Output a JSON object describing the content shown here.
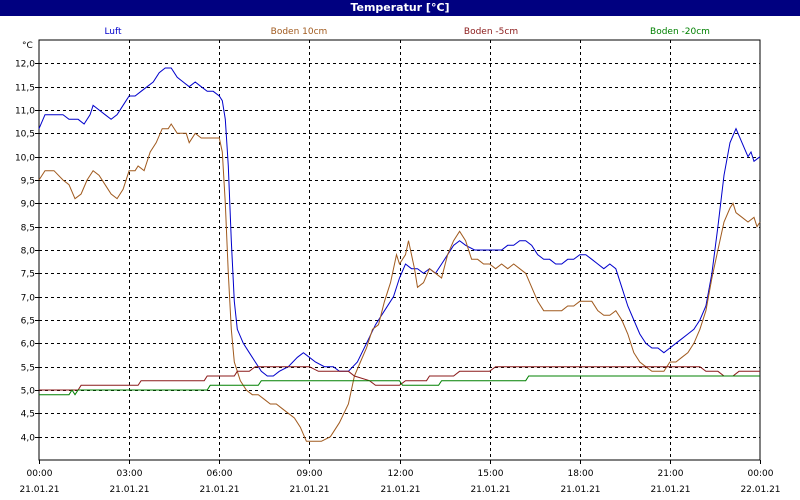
{
  "window": {
    "title": "Temperatur [°C]"
  },
  "colors": {
    "title_bar": "#000080",
    "grid": "#000000",
    "Luft": "#0000cc",
    "Boden 10cm": "#a05a1e",
    "Boden -5cm": "#8b1a1a",
    "Boden -20cm": "#008000"
  },
  "chart_data": {
    "type": "line",
    "title": "Temperatur [°C]",
    "ylabel": "°C",
    "ylim": [
      3.5,
      12.5
    ],
    "yticks": [
      "4,0",
      "4,5",
      "5,0",
      "5,5",
      "6,0",
      "6,5",
      "7,0",
      "7,5",
      "8,0",
      "8,5",
      "9,0",
      "9,5",
      "10,0",
      "10,5",
      "11,0",
      "11,5",
      "12,0"
    ],
    "xlim": [
      0,
      24
    ],
    "xticks": [
      {
        "x": 0,
        "time": "00:00",
        "date": "21.01.21"
      },
      {
        "x": 3,
        "time": "03:00",
        "date": "21.01.21"
      },
      {
        "x": 6,
        "time": "06:00",
        "date": "21.01.21"
      },
      {
        "x": 9,
        "time": "09:00",
        "date": "21.01.21"
      },
      {
        "x": 12,
        "time": "12:00",
        "date": "21.01.21"
      },
      {
        "x": 15,
        "time": "15:00",
        "date": "21.01.21"
      },
      {
        "x": 18,
        "time": "18:00",
        "date": "21.01.21"
      },
      {
        "x": 21,
        "time": "21:00",
        "date": "21.01.21"
      },
      {
        "x": 24,
        "time": "00:00",
        "date": "22.01.21"
      }
    ],
    "grid": true,
    "legend_position": "top",
    "series": [
      {
        "name": "Luft",
        "color": "#0000cc",
        "points": [
          [
            0.0,
            10.6
          ],
          [
            0.2,
            10.9
          ],
          [
            0.5,
            10.9
          ],
          [
            0.8,
            10.9
          ],
          [
            1.0,
            10.8
          ],
          [
            1.3,
            10.8
          ],
          [
            1.5,
            10.7
          ],
          [
            1.7,
            10.9
          ],
          [
            1.8,
            11.1
          ],
          [
            2.0,
            11.0
          ],
          [
            2.2,
            10.9
          ],
          [
            2.4,
            10.8
          ],
          [
            2.6,
            10.9
          ],
          [
            2.8,
            11.1
          ],
          [
            3.0,
            11.3
          ],
          [
            3.2,
            11.3
          ],
          [
            3.4,
            11.4
          ],
          [
            3.6,
            11.5
          ],
          [
            3.8,
            11.6
          ],
          [
            4.0,
            11.8
          ],
          [
            4.2,
            11.9
          ],
          [
            4.4,
            11.9
          ],
          [
            4.6,
            11.7
          ],
          [
            4.8,
            11.6
          ],
          [
            5.0,
            11.5
          ],
          [
            5.2,
            11.6
          ],
          [
            5.4,
            11.5
          ],
          [
            5.6,
            11.4
          ],
          [
            5.8,
            11.4
          ],
          [
            6.0,
            11.3
          ],
          [
            6.1,
            11.2
          ],
          [
            6.2,
            10.8
          ],
          [
            6.3,
            9.8
          ],
          [
            6.4,
            8.2
          ],
          [
            6.5,
            6.9
          ],
          [
            6.6,
            6.3
          ],
          [
            6.8,
            6.0
          ],
          [
            7.0,
            5.8
          ],
          [
            7.2,
            5.6
          ],
          [
            7.4,
            5.4
          ],
          [
            7.6,
            5.3
          ],
          [
            7.8,
            5.3
          ],
          [
            8.0,
            5.4
          ],
          [
            8.3,
            5.5
          ],
          [
            8.6,
            5.7
          ],
          [
            8.8,
            5.8
          ],
          [
            9.0,
            5.7
          ],
          [
            9.2,
            5.6
          ],
          [
            9.5,
            5.5
          ],
          [
            9.8,
            5.5
          ],
          [
            10.0,
            5.4
          ],
          [
            10.3,
            5.4
          ],
          [
            10.6,
            5.6
          ],
          [
            10.9,
            6.0
          ],
          [
            11.2,
            6.4
          ],
          [
            11.5,
            6.7
          ],
          [
            11.8,
            7.0
          ],
          [
            12.0,
            7.4
          ],
          [
            12.2,
            7.7
          ],
          [
            12.4,
            7.6
          ],
          [
            12.6,
            7.6
          ],
          [
            12.8,
            7.5
          ],
          [
            13.0,
            7.6
          ],
          [
            13.2,
            7.5
          ],
          [
            13.4,
            7.7
          ],
          [
            13.6,
            7.9
          ],
          [
            13.8,
            8.1
          ],
          [
            14.0,
            8.2
          ],
          [
            14.2,
            8.1
          ],
          [
            14.5,
            8.0
          ],
          [
            14.8,
            8.0
          ],
          [
            15.0,
            8.0
          ],
          [
            15.2,
            8.0
          ],
          [
            15.4,
            8.0
          ],
          [
            15.6,
            8.1
          ],
          [
            15.8,
            8.1
          ],
          [
            16.0,
            8.2
          ],
          [
            16.2,
            8.2
          ],
          [
            16.4,
            8.1
          ],
          [
            16.6,
            7.9
          ],
          [
            16.8,
            7.8
          ],
          [
            17.0,
            7.8
          ],
          [
            17.2,
            7.7
          ],
          [
            17.4,
            7.7
          ],
          [
            17.6,
            7.8
          ],
          [
            17.8,
            7.8
          ],
          [
            18.0,
            7.9
          ],
          [
            18.2,
            7.9
          ],
          [
            18.4,
            7.8
          ],
          [
            18.6,
            7.7
          ],
          [
            18.8,
            7.6
          ],
          [
            19.0,
            7.7
          ],
          [
            19.2,
            7.6
          ],
          [
            19.4,
            7.2
          ],
          [
            19.6,
            6.8
          ],
          [
            19.8,
            6.5
          ],
          [
            20.0,
            6.2
          ],
          [
            20.2,
            6.0
          ],
          [
            20.4,
            5.9
          ],
          [
            20.6,
            5.9
          ],
          [
            20.8,
            5.8
          ],
          [
            21.0,
            5.9
          ],
          [
            21.2,
            6.0
          ],
          [
            21.4,
            6.1
          ],
          [
            21.6,
            6.2
          ],
          [
            21.8,
            6.3
          ],
          [
            22.0,
            6.5
          ],
          [
            22.2,
            6.8
          ],
          [
            22.4,
            7.5
          ],
          [
            22.6,
            8.5
          ],
          [
            22.8,
            9.6
          ],
          [
            23.0,
            10.3
          ],
          [
            23.2,
            10.6
          ],
          [
            23.4,
            10.3
          ],
          [
            23.6,
            10.0
          ],
          [
            23.7,
            10.1
          ],
          [
            23.8,
            9.9
          ],
          [
            24.0,
            10.0
          ]
        ]
      },
      {
        "name": "Boden 10cm",
        "color": "#a05a1e",
        "points": [
          [
            0.0,
            9.5
          ],
          [
            0.2,
            9.7
          ],
          [
            0.5,
            9.7
          ],
          [
            0.8,
            9.5
          ],
          [
            1.0,
            9.4
          ],
          [
            1.2,
            9.1
          ],
          [
            1.4,
            9.2
          ],
          [
            1.6,
            9.5
          ],
          [
            1.8,
            9.7
          ],
          [
            2.0,
            9.6
          ],
          [
            2.2,
            9.4
          ],
          [
            2.4,
            9.2
          ],
          [
            2.6,
            9.1
          ],
          [
            2.8,
            9.3
          ],
          [
            3.0,
            9.7
          ],
          [
            3.2,
            9.7
          ],
          [
            3.3,
            9.8
          ],
          [
            3.5,
            9.7
          ],
          [
            3.7,
            10.1
          ],
          [
            3.9,
            10.3
          ],
          [
            4.1,
            10.6
          ],
          [
            4.3,
            10.6
          ],
          [
            4.4,
            10.7
          ],
          [
            4.6,
            10.5
          ],
          [
            4.8,
            10.5
          ],
          [
            4.9,
            10.5
          ],
          [
            5.0,
            10.3
          ],
          [
            5.2,
            10.5
          ],
          [
            5.4,
            10.4
          ],
          [
            5.6,
            10.4
          ],
          [
            5.8,
            10.4
          ],
          [
            6.0,
            10.4
          ],
          [
            6.1,
            10.1
          ],
          [
            6.2,
            9.0
          ],
          [
            6.3,
            7.5
          ],
          [
            6.4,
            6.3
          ],
          [
            6.5,
            5.6
          ],
          [
            6.7,
            5.2
          ],
          [
            6.9,
            5.0
          ],
          [
            7.1,
            4.9
          ],
          [
            7.3,
            4.9
          ],
          [
            7.5,
            4.8
          ],
          [
            7.7,
            4.7
          ],
          [
            7.9,
            4.7
          ],
          [
            8.1,
            4.6
          ],
          [
            8.3,
            4.5
          ],
          [
            8.5,
            4.4
          ],
          [
            8.7,
            4.2
          ],
          [
            8.9,
            3.9
          ],
          [
            9.1,
            3.9
          ],
          [
            9.4,
            3.9
          ],
          [
            9.7,
            4.0
          ],
          [
            10.0,
            4.3
          ],
          [
            10.3,
            4.7
          ],
          [
            10.5,
            5.3
          ],
          [
            10.7,
            5.6
          ],
          [
            10.9,
            5.9
          ],
          [
            11.1,
            6.3
          ],
          [
            11.3,
            6.4
          ],
          [
            11.5,
            6.9
          ],
          [
            11.7,
            7.3
          ],
          [
            11.9,
            7.9
          ],
          [
            12.0,
            7.7
          ],
          [
            12.2,
            7.9
          ],
          [
            12.3,
            8.2
          ],
          [
            12.5,
            7.6
          ],
          [
            12.6,
            7.2
          ],
          [
            12.8,
            7.3
          ],
          [
            13.0,
            7.6
          ],
          [
            13.2,
            7.5
          ],
          [
            13.4,
            7.4
          ],
          [
            13.6,
            7.9
          ],
          [
            13.8,
            8.2
          ],
          [
            14.0,
            8.4
          ],
          [
            14.2,
            8.2
          ],
          [
            14.4,
            7.8
          ],
          [
            14.6,
            7.8
          ],
          [
            14.8,
            7.7
          ],
          [
            15.0,
            7.7
          ],
          [
            15.2,
            7.6
          ],
          [
            15.4,
            7.7
          ],
          [
            15.6,
            7.6
          ],
          [
            15.8,
            7.7
          ],
          [
            16.0,
            7.6
          ],
          [
            16.2,
            7.5
          ],
          [
            16.4,
            7.2
          ],
          [
            16.6,
            6.9
          ],
          [
            16.8,
            6.7
          ],
          [
            17.0,
            6.7
          ],
          [
            17.2,
            6.7
          ],
          [
            17.4,
            6.7
          ],
          [
            17.6,
            6.8
          ],
          [
            17.8,
            6.8
          ],
          [
            18.0,
            6.9
          ],
          [
            18.2,
            6.9
          ],
          [
            18.4,
            6.9
          ],
          [
            18.6,
            6.7
          ],
          [
            18.8,
            6.6
          ],
          [
            19.0,
            6.6
          ],
          [
            19.2,
            6.7
          ],
          [
            19.4,
            6.5
          ],
          [
            19.6,
            6.2
          ],
          [
            19.8,
            5.8
          ],
          [
            20.0,
            5.6
          ],
          [
            20.2,
            5.5
          ],
          [
            20.4,
            5.4
          ],
          [
            20.6,
            5.4
          ],
          [
            20.8,
            5.4
          ],
          [
            21.0,
            5.6
          ],
          [
            21.2,
            5.6
          ],
          [
            21.4,
            5.7
          ],
          [
            21.6,
            5.8
          ],
          [
            21.8,
            6.0
          ],
          [
            22.0,
            6.3
          ],
          [
            22.2,
            6.7
          ],
          [
            22.4,
            7.4
          ],
          [
            22.6,
            8.0
          ],
          [
            22.8,
            8.6
          ],
          [
            23.0,
            8.9
          ],
          [
            23.1,
            9.0
          ],
          [
            23.2,
            8.8
          ],
          [
            23.4,
            8.7
          ],
          [
            23.6,
            8.6
          ],
          [
            23.8,
            8.7
          ],
          [
            23.9,
            8.5
          ],
          [
            24.0,
            8.6
          ]
        ]
      },
      {
        "name": "Boden -5cm",
        "color": "#8b1a1a",
        "points": [
          [
            0.0,
            5.0
          ],
          [
            1.3,
            5.0
          ],
          [
            1.4,
            5.1
          ],
          [
            3.3,
            5.1
          ],
          [
            3.4,
            5.2
          ],
          [
            5.5,
            5.2
          ],
          [
            5.6,
            5.3
          ],
          [
            6.5,
            5.3
          ],
          [
            6.6,
            5.4
          ],
          [
            7.0,
            5.4
          ],
          [
            7.2,
            5.5
          ],
          [
            9.0,
            5.5
          ],
          [
            9.3,
            5.4
          ],
          [
            10.3,
            5.4
          ],
          [
            10.5,
            5.3
          ],
          [
            11.0,
            5.2
          ],
          [
            11.2,
            5.1
          ],
          [
            12.0,
            5.1
          ],
          [
            12.2,
            5.2
          ],
          [
            12.9,
            5.2
          ],
          [
            13.0,
            5.3
          ],
          [
            13.8,
            5.3
          ],
          [
            14.0,
            5.4
          ],
          [
            15.0,
            5.4
          ],
          [
            15.2,
            5.5
          ],
          [
            19.0,
            5.5
          ],
          [
            19.2,
            5.5
          ],
          [
            20.0,
            5.5
          ],
          [
            21.0,
            5.5
          ],
          [
            22.0,
            5.5
          ],
          [
            22.2,
            5.4
          ],
          [
            22.6,
            5.4
          ],
          [
            22.8,
            5.3
          ],
          [
            23.1,
            5.3
          ],
          [
            23.3,
            5.4
          ],
          [
            24.0,
            5.4
          ]
        ]
      },
      {
        "name": "Boden -20cm",
        "color": "#008000",
        "points": [
          [
            0.0,
            4.9
          ],
          [
            1.0,
            4.9
          ],
          [
            1.1,
            5.0
          ],
          [
            1.2,
            4.9
          ],
          [
            1.3,
            5.0
          ],
          [
            5.6,
            5.0
          ],
          [
            5.7,
            5.1
          ],
          [
            7.3,
            5.1
          ],
          [
            7.4,
            5.2
          ],
          [
            11.5,
            5.2
          ],
          [
            11.6,
            5.2
          ],
          [
            12.0,
            5.2
          ],
          [
            12.1,
            5.1
          ],
          [
            13.3,
            5.1
          ],
          [
            13.4,
            5.2
          ],
          [
            16.2,
            5.2
          ],
          [
            16.3,
            5.3
          ],
          [
            24.0,
            5.3
          ]
        ]
      }
    ]
  }
}
